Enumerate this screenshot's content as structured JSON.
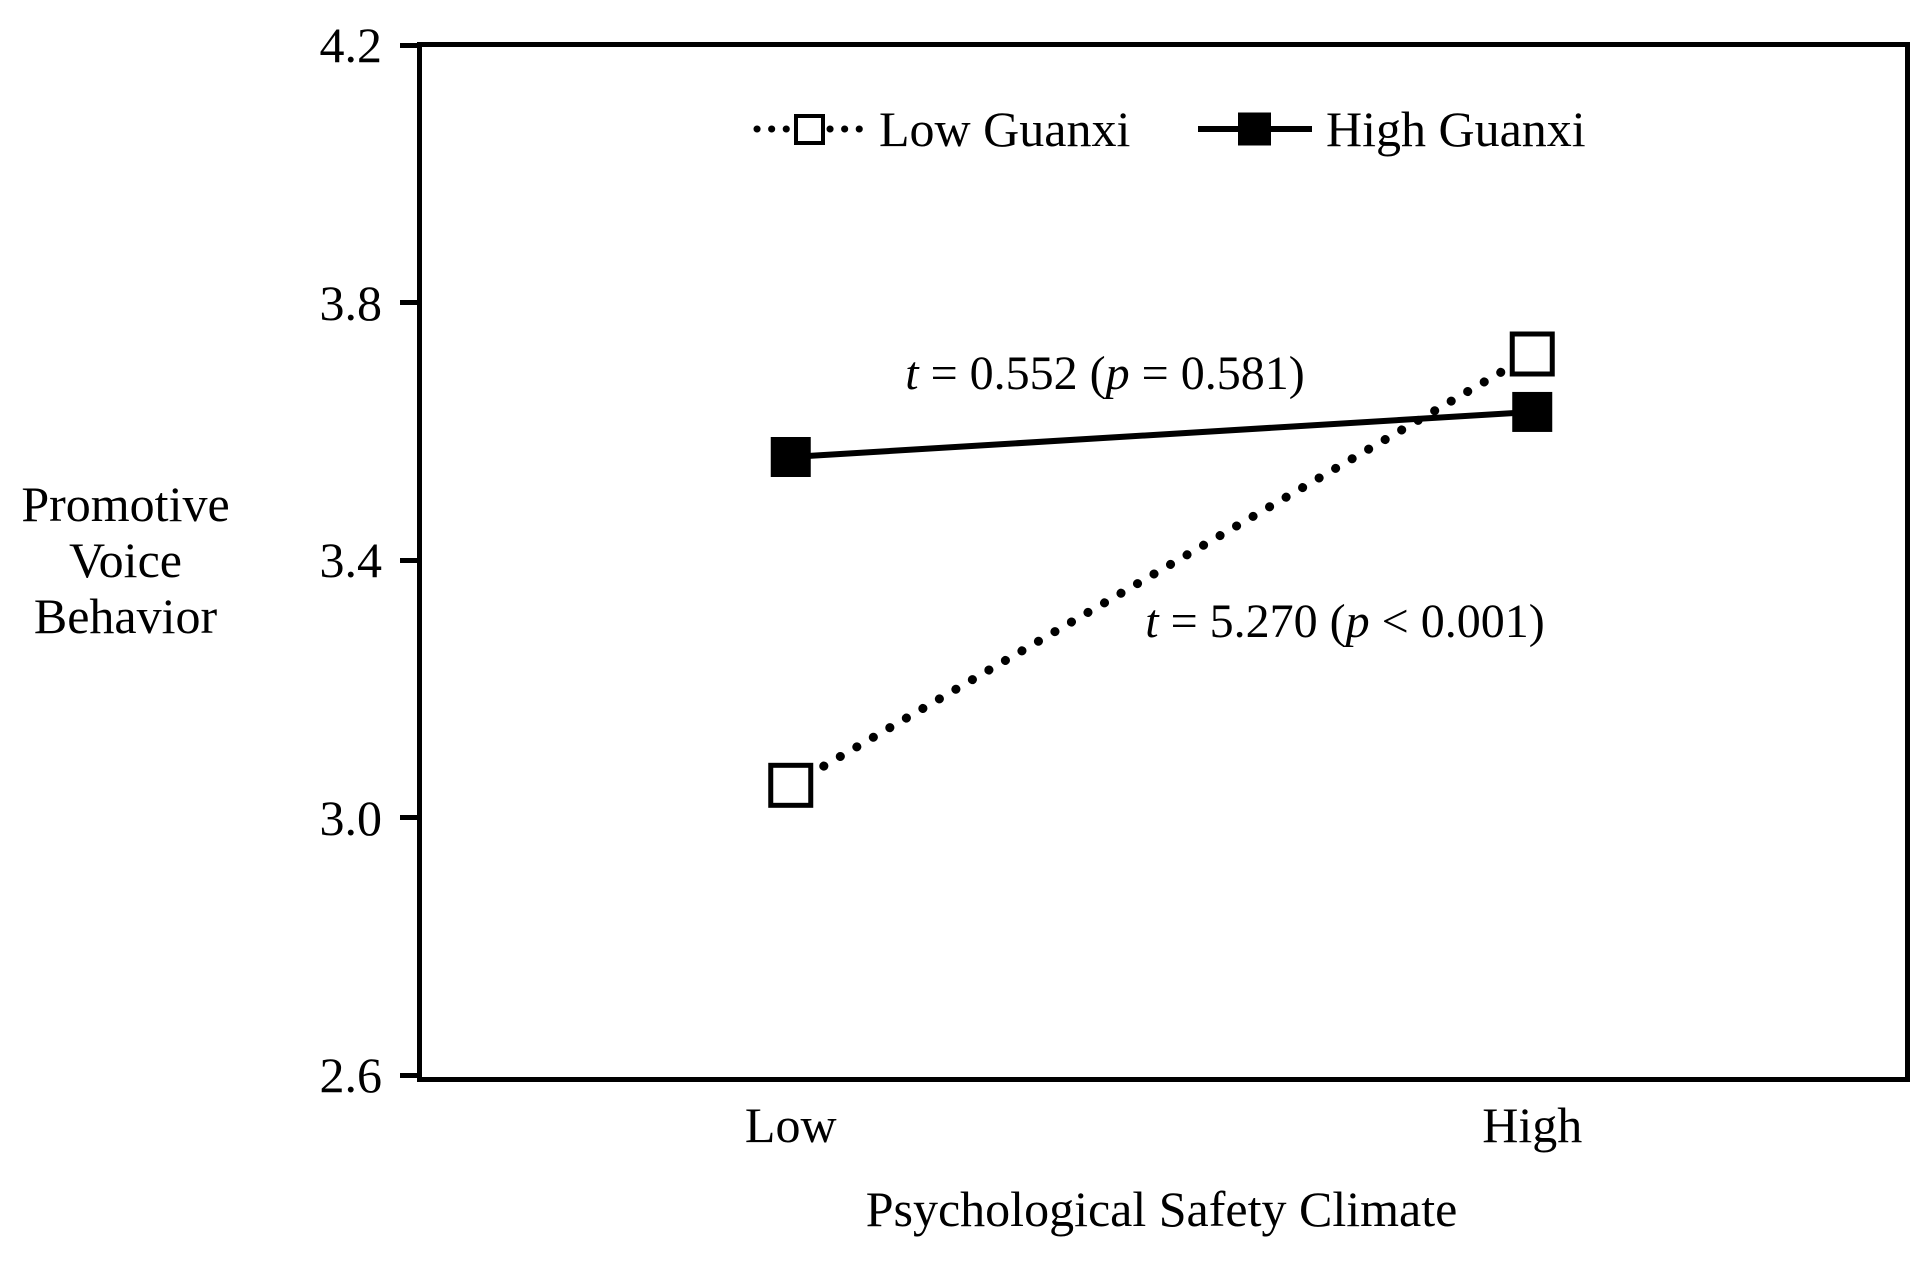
{
  "figure": {
    "background_color": "#ffffff",
    "ink_color": "#000000"
  },
  "chart_data": {
    "type": "line",
    "title": "",
    "x_categories": [
      "Low",
      "High"
    ],
    "xlabel": "Psychological Safety Climate",
    "ylabel": "Promotive Voice Behavior",
    "ylabel_lines": [
      "Promotive",
      "Voice",
      "Behavior"
    ],
    "ylim": [
      2.6,
      4.2
    ],
    "ytick_labels": [
      "4.2",
      "3.8",
      "3.4",
      "3.0",
      "2.6"
    ],
    "ytick_values": [
      4.2,
      3.8,
      3.4,
      3.0,
      2.6
    ],
    "grid": false,
    "legend_position": "top-center-inside",
    "series": [
      {
        "name": "Low Guanxi",
        "values": [
          3.05,
          3.72
        ],
        "line_style": "dotted",
        "marker": "open-square",
        "color": "#000000"
      },
      {
        "name": "High Guanxi",
        "values": [
          3.56,
          3.63
        ],
        "line_style": "solid",
        "marker": "filled-square",
        "color": "#000000"
      }
    ],
    "annotations": [
      {
        "text": "t = 0.552 (p = 0.581)",
        "segments": {
          "var1": "t",
          "mid1": " = 0.552 (",
          "var2": "p",
          "mid2": " = 0.581)"
        }
      },
      {
        "text": "t = 5.270 (p < 0.001)",
        "segments": {
          "var1": "t",
          "mid1": " = 5.270 (",
          "var2": "p",
          "mid2": " < 0.001)"
        }
      }
    ]
  }
}
